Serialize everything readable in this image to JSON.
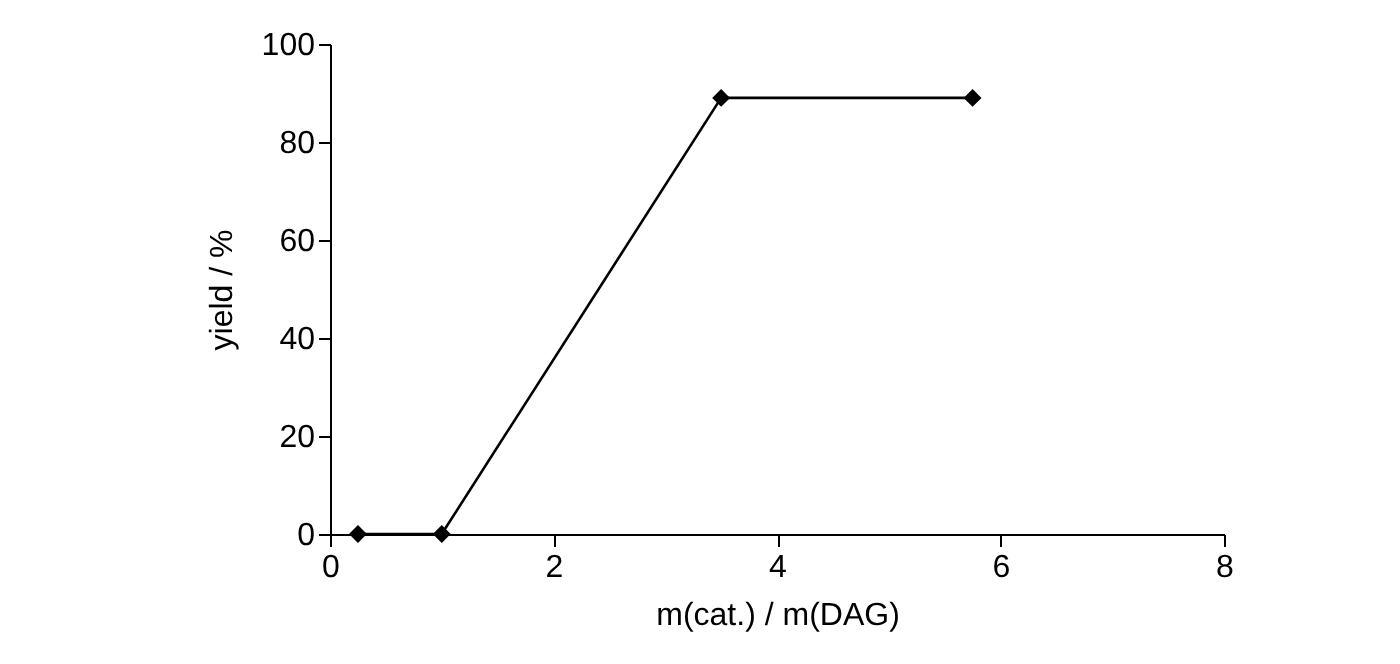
{
  "chart_data": {
    "type": "line",
    "xlabel": "m(cat.) / m(DAG)",
    "ylabel": "yield / %",
    "x": [
      0.25,
      1,
      3.5,
      5.75
    ],
    "series": [
      {
        "color": "#000000",
        "values": [
          0,
          0,
          89,
          89
        ]
      }
    ],
    "xlim": [
      0,
      8
    ],
    "xticks": [
      0,
      2,
      4,
      6,
      8
    ],
    "ylim": [
      0,
      100
    ],
    "yticks": [
      0,
      20,
      40,
      60,
      80,
      100
    ],
    "grid": false,
    "marker": "diamond",
    "line_style": "solid"
  }
}
